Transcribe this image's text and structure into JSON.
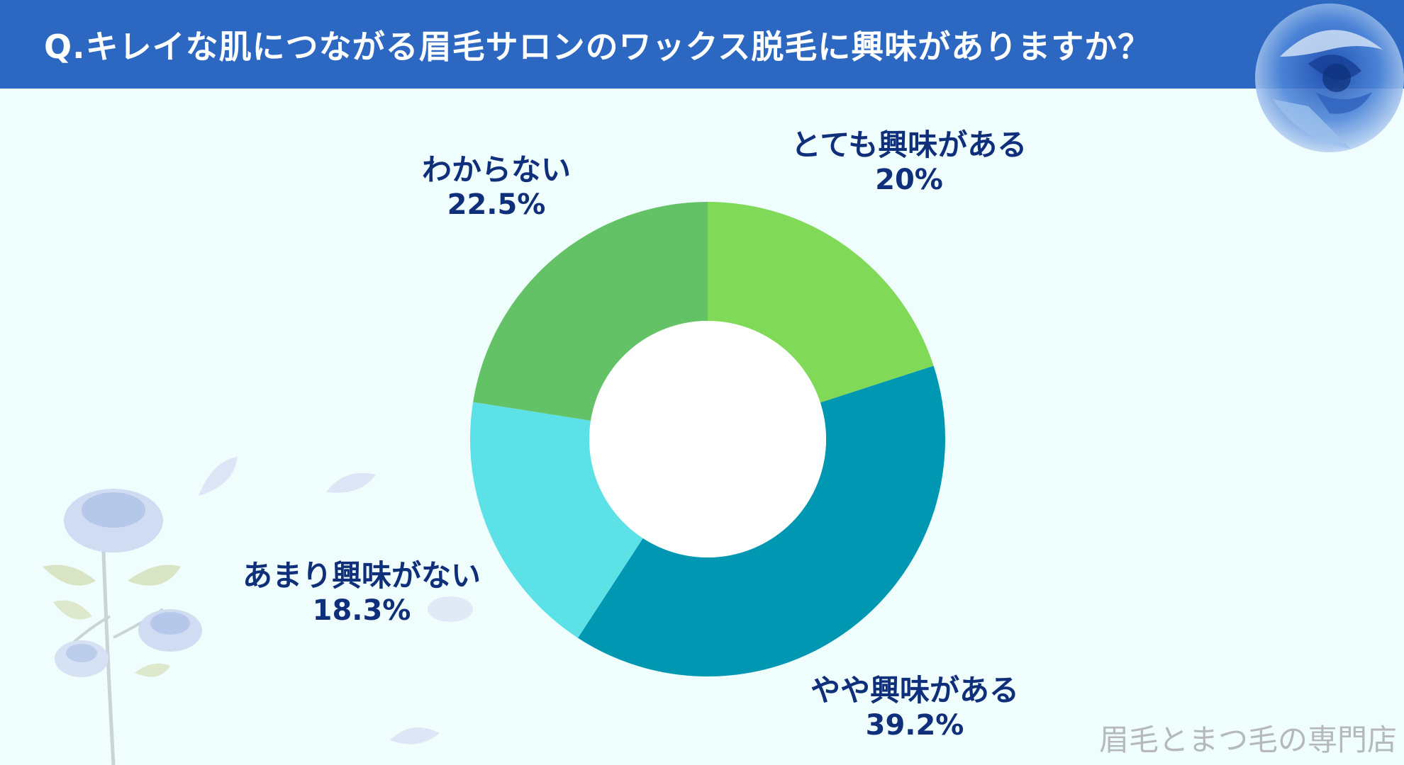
{
  "header": {
    "title": "Q.キレイな肌につながる眉毛サロンのワックス脱毛に興味がありますか？"
  },
  "chart_data": {
    "type": "pie",
    "variant": "donut",
    "title": "Q.キレイな肌につながる眉毛サロンのワックス脱毛に興味がありますか？",
    "start": "top",
    "direction": "clockwise",
    "slices": [
      {
        "label": "とても興味がある",
        "value": 20,
        "value_label": "20%",
        "color": "#80d957"
      },
      {
        "label": "やや興味がある",
        "value": 39.2,
        "value_label": "39.2%",
        "color": "#0097b2"
      },
      {
        "label": "あまり興味がない",
        "value": 18.3,
        "value_label": "18.3%",
        "color": "#5ce1e6"
      },
      {
        "label": "わからない",
        "value": 22.5,
        "value_label": "22.5%",
        "color": "#64c266"
      }
    ]
  },
  "footer": {
    "watermark": "眉毛とまつ毛の専門店"
  },
  "colors": {
    "header_bg": "#2c67c1",
    "page_bg": "#effdfd",
    "label_text": "#0f2f7a"
  }
}
